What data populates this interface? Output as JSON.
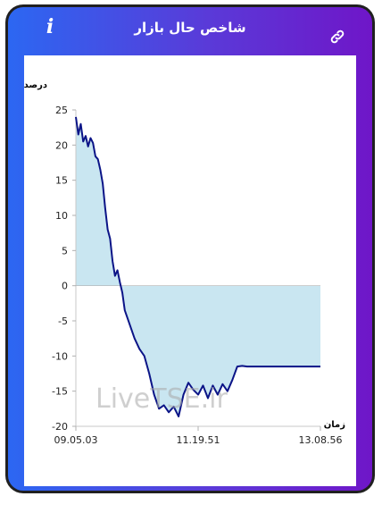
{
  "header": {
    "title": "شاخص حال بازار",
    "info_label": "i",
    "info_icon": "info-icon",
    "link_icon": "link-icon"
  },
  "chart_data": {
    "type": "area",
    "ylabel": "درصد",
    "xlabel": "زمان",
    "ylim": [
      -20,
      25
    ],
    "yticks": [
      25,
      20,
      15,
      10,
      5,
      0,
      -5,
      -10,
      -15,
      -20
    ],
    "xtick_labels": [
      "09.05.03",
      "11.19.51",
      "13.08.56"
    ],
    "watermark": "LiveTSE.ir",
    "line_color": "#0b1487",
    "fill_color": "#c9e6f1",
    "series": [
      {
        "x": [
          0,
          1,
          2,
          3,
          4,
          5,
          6,
          7,
          8,
          9,
          10,
          11,
          12,
          13,
          14,
          15,
          16,
          17,
          18,
          19,
          20,
          22,
          24,
          26,
          28,
          30,
          32,
          34,
          36,
          38,
          40,
          42,
          44,
          46,
          48,
          50,
          52,
          54,
          56,
          58,
          60,
          62,
          64,
          66,
          68,
          70,
          72,
          74,
          76,
          78,
          80,
          82,
          84,
          86,
          88,
          90,
          92,
          94,
          96,
          98,
          100
        ],
        "y": [
          24,
          21.5,
          23,
          20.5,
          21.3,
          19.8,
          21,
          20.3,
          18.4,
          18,
          16.5,
          14.5,
          11,
          8,
          6.7,
          3.5,
          1.4,
          2.2,
          0.5,
          -1,
          -3.5,
          -5.5,
          -7.5,
          -9,
          -10,
          -12.5,
          -15.5,
          -17.5,
          -17,
          -18,
          -17.2,
          -18.6,
          -15.5,
          -13.8,
          -14.8,
          -15.5,
          -14.2,
          -16,
          -14.2,
          -15.5,
          -14,
          -15,
          -13.4,
          -11.5,
          -11.4,
          -11.5,
          -11.5,
          -11.5,
          -11.5,
          -11.5,
          -11.5,
          -11.5,
          -11.5,
          -11.5,
          -11.5,
          -11.5,
          -11.5,
          -11.5,
          -11.5,
          -11.5,
          -11.5
        ]
      }
    ]
  }
}
